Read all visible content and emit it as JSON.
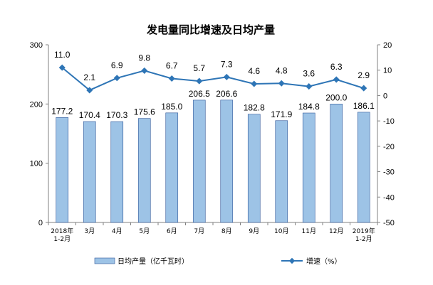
{
  "chart_data": {
    "type": "bar+line",
    "title": "发电量同比增速及日均产量",
    "categories": [
      "2018年|1-2月",
      "3月",
      "4月",
      "5月",
      "6月",
      "7月",
      "8月",
      "9月",
      "10月",
      "11月",
      "12月",
      "2019年|1-2月"
    ],
    "bar_series": {
      "name": "日均产量（亿千瓦时）",
      "values": [
        177.2,
        170.4,
        170.3,
        175.6,
        185.0,
        206.5,
        206.6,
        182.8,
        171.9,
        184.8,
        200.0,
        186.1
      ],
      "value_labels": [
        "177.2",
        "170.4",
        "170.3",
        "175.6",
        "185.0",
        "206.5",
        "206.6",
        "182.8",
        "171.9",
        "184.8",
        "200.0",
        "186.1"
      ],
      "axis": "left",
      "color": "#9DC3E6",
      "edge_color": "#2F5597"
    },
    "line_series": {
      "name": "增速（%）",
      "values": [
        11.0,
        2.1,
        6.9,
        9.8,
        6.7,
        5.7,
        7.3,
        4.6,
        4.8,
        3.6,
        6.3,
        2.9
      ],
      "value_labels": [
        "11.0",
        "2.1",
        "6.9",
        "9.8",
        "6.7",
        "5.7",
        "7.3",
        "4.6",
        "4.8",
        "3.6",
        "6.3",
        "2.9"
      ],
      "axis": "right",
      "color": "#2E75B6"
    },
    "y_left": {
      "lim": [
        0,
        300
      ],
      "ticks": [
        0,
        100,
        200,
        300
      ],
      "tick_labels": [
        "0",
        "100",
        "200",
        "300"
      ]
    },
    "y_right": {
      "lim": [
        -50,
        20
      ],
      "ticks": [
        20,
        10,
        0,
        -10,
        -20,
        -30,
        -40,
        -50
      ],
      "tick_labels": [
        "20",
        "10",
        "0",
        "-10",
        "-20",
        "-30",
        "-40",
        "-50"
      ]
    },
    "grid": false,
    "legend": {
      "position": "bottom"
    }
  }
}
